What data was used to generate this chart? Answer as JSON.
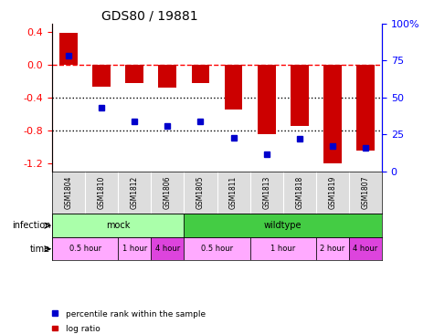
{
  "title": "GDS80 / 19881",
  "samples": [
    "GSM1804",
    "GSM1810",
    "GSM1812",
    "GSM1806",
    "GSM1805",
    "GSM1811",
    "GSM1813",
    "GSM1818",
    "GSM1819",
    "GSM1807"
  ],
  "log_ratio": [
    0.38,
    -0.27,
    -0.23,
    -0.28,
    -0.22,
    -0.55,
    -0.85,
    -0.75,
    -1.2,
    -1.05
  ],
  "percentile": [
    78,
    43,
    34,
    31,
    34,
    23,
    12,
    22,
    17,
    16
  ],
  "ylim_left": [
    -1.3,
    0.5
  ],
  "ylim_right": [
    0,
    100
  ],
  "yticks_left": [
    0.4,
    0.0,
    -0.4,
    -0.8,
    -1.2
  ],
  "yticks_right": [
    100,
    75,
    50,
    25,
    0
  ],
  "bar_color": "#cc0000",
  "dot_color": "#0000cc",
  "hline_y": 0.0,
  "dotted_lines": [
    -0.4,
    -0.8
  ],
  "infection_groups": [
    {
      "label": "mock",
      "start": 0,
      "end": 4,
      "color": "#aaffaa"
    },
    {
      "label": "wildtype",
      "start": 4,
      "end": 10,
      "color": "#44cc44"
    }
  ],
  "time_groups": [
    {
      "label": "0.5 hour",
      "start": 0,
      "end": 2,
      "color": "#ffaaff"
    },
    {
      "label": "1 hour",
      "start": 2,
      "end": 3,
      "color": "#ffaaff"
    },
    {
      "label": "4 hour",
      "start": 3,
      "end": 4,
      "color": "#dd44dd"
    },
    {
      "label": "0.5 hour",
      "start": 4,
      "end": 6,
      "color": "#ffaaff"
    },
    {
      "label": "1 hour",
      "start": 6,
      "end": 8,
      "color": "#ffaaff"
    },
    {
      "label": "2 hour",
      "start": 8,
      "end": 9,
      "color": "#ffaaff"
    },
    {
      "label": "4 hour",
      "start": 9,
      "end": 10,
      "color": "#dd44dd"
    }
  ],
  "legend_items": [
    {
      "label": "log ratio",
      "color": "#cc0000",
      "marker": "s"
    },
    {
      "label": "percentile rank within the sample",
      "color": "#0000cc",
      "marker": "s"
    }
  ],
  "bar_width": 0.55
}
